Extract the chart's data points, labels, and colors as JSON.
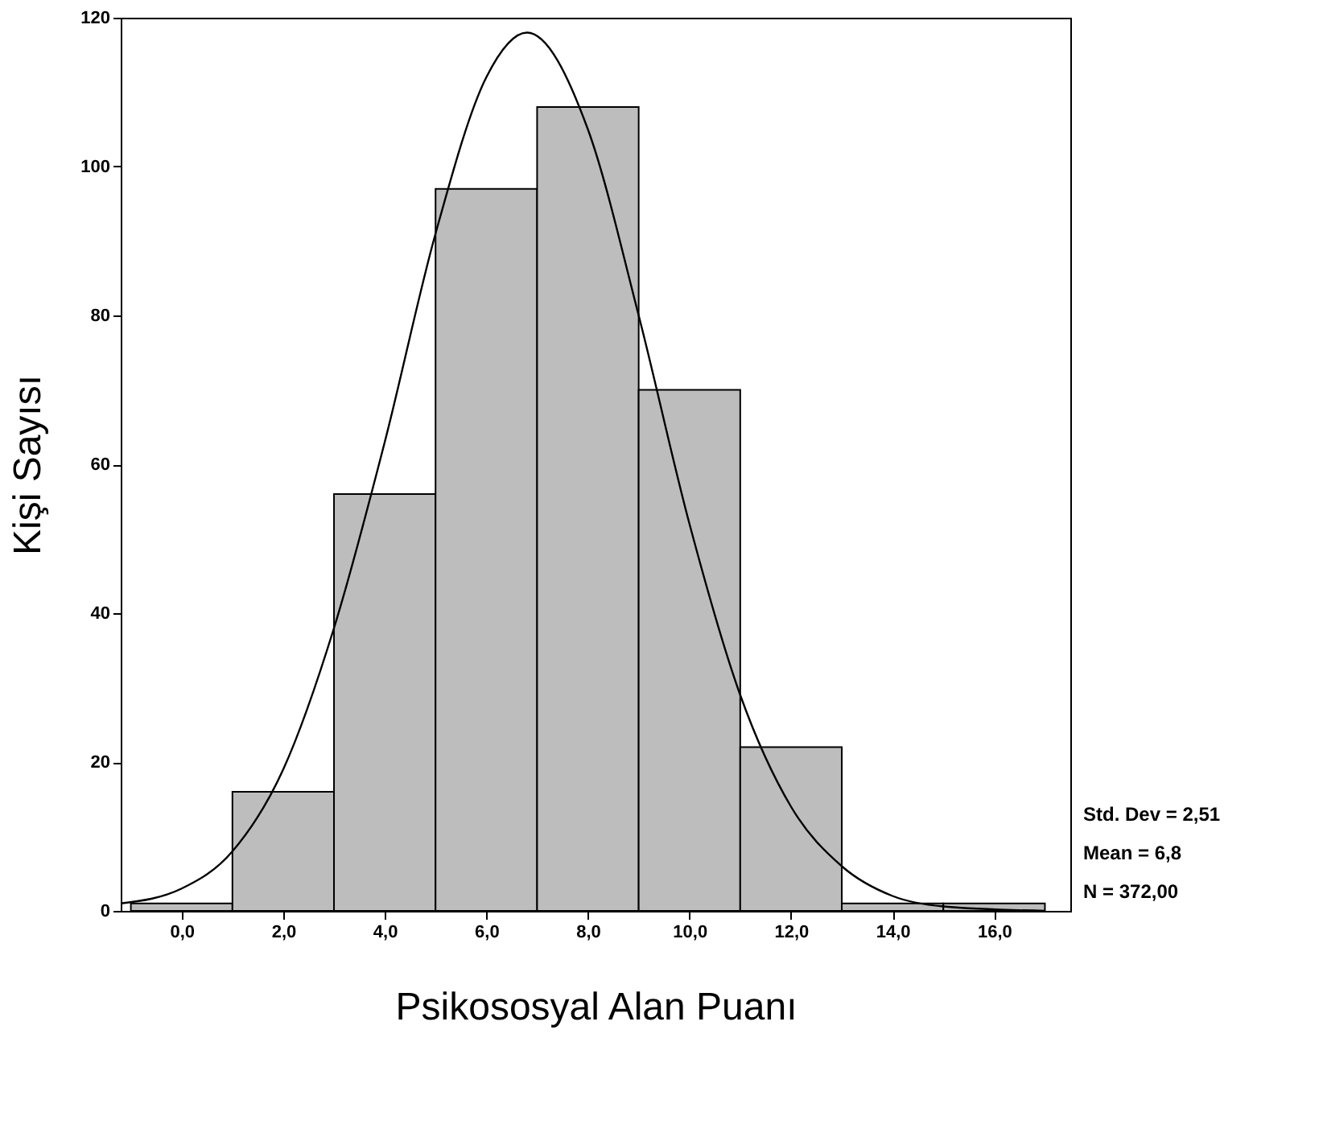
{
  "chart_data": {
    "type": "histogram",
    "xlabel": "Psikososyal Alan Puanı",
    "ylabel": "Kişi Sayısı",
    "bins": [
      -1,
      1,
      3,
      5,
      7,
      9,
      11,
      13,
      15,
      17
    ],
    "values": [
      1,
      16,
      56,
      97,
      108,
      70,
      22,
      1,
      1
    ],
    "color": "#bdbdbd",
    "series": [
      {
        "type": "line",
        "color": "#000000",
        "x": [
          -1.2,
          0,
          1,
          2,
          3,
          4,
          5,
          6,
          6.8,
          8,
          9,
          10,
          11,
          12,
          13,
          14,
          15,
          17
        ],
        "values": [
          1,
          3,
          8,
          19,
          38,
          63,
          91,
          112,
          118,
          105,
          80,
          52,
          29,
          14,
          6,
          2,
          0.6,
          0
        ]
      }
    ],
    "xlim": [
      -1.2,
      17.5
    ],
    "ylim": [
      0,
      120
    ],
    "xticks": [
      {
        "value": 0,
        "label": "0,0"
      },
      {
        "value": 2,
        "label": "2,0"
      },
      {
        "value": 4,
        "label": "4,0"
      },
      {
        "value": 6,
        "label": "6,0"
      },
      {
        "value": 8,
        "label": "8,0"
      },
      {
        "value": 10,
        "label": "10,0"
      },
      {
        "value": 12,
        "label": "12,0"
      },
      {
        "value": 14,
        "label": "14,0"
      },
      {
        "value": 16,
        "label": "16,0"
      }
    ],
    "yticks": [
      0,
      20,
      40,
      60,
      80,
      100,
      120
    ],
    "grid": false,
    "annotations": [
      "Std. Dev = 2,51",
      "Mean = 6,8",
      "N = 372,00"
    ]
  }
}
